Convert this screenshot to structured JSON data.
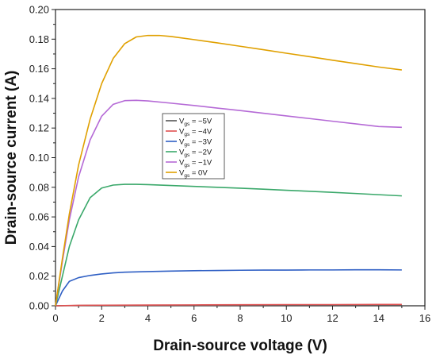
{
  "chart_data": {
    "type": "line",
    "title": "",
    "xlabel": "Drain-source voltage (V)",
    "ylabel": "Drain-source current (A)",
    "xlim": [
      0,
      16
    ],
    "ylim": [
      0,
      0.2
    ],
    "x_ticks": [
      0,
      2,
      4,
      6,
      8,
      10,
      12,
      14,
      16
    ],
    "y_ticks": [
      0.0,
      0.02,
      0.04,
      0.06,
      0.08,
      0.1,
      0.12,
      0.14,
      0.16,
      0.18,
      0.2
    ],
    "x_tick_labels": [
      "0",
      "2",
      "4",
      "6",
      "8",
      "10",
      "12",
      "14",
      "16"
    ],
    "y_tick_labels": [
      "0.00",
      "0.02",
      "0.04",
      "0.06",
      "0.08",
      "0.10",
      "0.12",
      "0.14",
      "0.16",
      "0.18",
      "0.20"
    ],
    "grid": false,
    "legend_position": "center",
    "series": [
      {
        "name_main": "V",
        "name_sub": "gs",
        "name_rest": " = −5V",
        "color": "#555555",
        "x": [
          0,
          1,
          2,
          4,
          6,
          8,
          10,
          12,
          14,
          15
        ],
        "y": [
          0,
          0.0002,
          0.0003,
          0.0003,
          0.0003,
          0.0004,
          0.0004,
          0.0004,
          0.0004,
          0.0004
        ]
      },
      {
        "name_main": "V",
        "name_sub": "gs",
        "name_rest": " = −4V",
        "color": "#e05050",
        "x": [
          0,
          1,
          2,
          4,
          6,
          8,
          10,
          12,
          14,
          15
        ],
        "y": [
          0,
          0.0003,
          0.0004,
          0.0005,
          0.0006,
          0.0007,
          0.0008,
          0.0008,
          0.0009,
          0.0009
        ]
      },
      {
        "name_main": "V",
        "name_sub": "gs",
        "name_rest": " = −3V",
        "color": "#2f5fc4",
        "x": [
          0,
          0.3,
          0.6,
          1.0,
          1.5,
          2.0,
          2.5,
          3.0,
          4.0,
          5.0,
          6.0,
          7.0,
          8.0,
          9.0,
          10.0,
          11.0,
          12.0,
          13.0,
          14.0,
          15.0
        ],
        "y": [
          0,
          0.01,
          0.0165,
          0.019,
          0.0205,
          0.0215,
          0.0222,
          0.0227,
          0.0231,
          0.0234,
          0.0237,
          0.0238,
          0.024,
          0.0241,
          0.0241,
          0.0242,
          0.0242,
          0.0243,
          0.0243,
          0.0242
        ]
      },
      {
        "name_main": "V",
        "name_sub": "gs",
        "name_rest": " = −2V",
        "color": "#3aa86a",
        "x": [
          0,
          0.3,
          0.6,
          1.0,
          1.5,
          2.0,
          2.5,
          3.0,
          3.5,
          4.0,
          5.0,
          6.0,
          7.0,
          8.0,
          9.0,
          10.0,
          11.0,
          12.0,
          13.0,
          14.0,
          15.0
        ],
        "y": [
          0,
          0.02,
          0.04,
          0.058,
          0.073,
          0.0795,
          0.0815,
          0.082,
          0.082,
          0.0818,
          0.0812,
          0.0806,
          0.08,
          0.0794,
          0.0787,
          0.078,
          0.0773,
          0.0766,
          0.0758,
          0.075,
          0.0742
        ]
      },
      {
        "name_main": "V",
        "name_sub": "gs",
        "name_rest": " = −1V",
        "color": "#b56ad6",
        "x": [
          0,
          0.3,
          0.6,
          1.0,
          1.5,
          2.0,
          2.5,
          3.0,
          3.5,
          4.0,
          5.0,
          6.0,
          7.0,
          8.0,
          9.0,
          10.0,
          11.0,
          12.0,
          13.0,
          14.0,
          15.0
        ],
        "y": [
          0,
          0.03,
          0.058,
          0.087,
          0.112,
          0.128,
          0.136,
          0.1385,
          0.1387,
          0.1383,
          0.1368,
          0.1352,
          0.1335,
          0.1318,
          0.13,
          0.1282,
          0.1264,
          0.1246,
          0.1228,
          0.121,
          0.1205
        ]
      },
      {
        "name_main": "V",
        "name_sub": "gs",
        "name_rest": " = 0V",
        "color": "#e0a000",
        "x": [
          0,
          0.3,
          0.6,
          1.0,
          1.5,
          2.0,
          2.5,
          3.0,
          3.5,
          4.0,
          4.5,
          5.0,
          6.0,
          7.0,
          8.0,
          9.0,
          10.0,
          11.0,
          12.0,
          13.0,
          14.0,
          15.0
        ],
        "y": [
          0,
          0.032,
          0.062,
          0.095,
          0.126,
          0.15,
          0.167,
          0.177,
          0.1815,
          0.1825,
          0.1825,
          0.1818,
          0.1797,
          0.1775,
          0.1752,
          0.1729,
          0.1705,
          0.1682,
          0.1658,
          0.1635,
          0.1612,
          0.1592
        ]
      }
    ]
  }
}
